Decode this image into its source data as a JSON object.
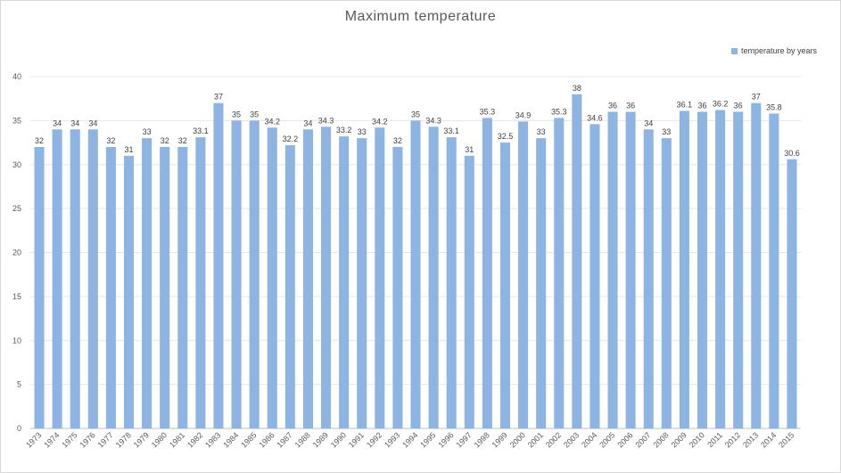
{
  "chart_data": {
    "type": "bar",
    "title": "Maximum temperature",
    "xlabel": "",
    "ylabel": "",
    "ylim": [
      0,
      40
    ],
    "yticks": [
      0,
      5,
      10,
      15,
      20,
      25,
      30,
      35,
      40
    ],
    "grid": true,
    "legend_position": "top-right",
    "categories": [
      "1973",
      "1974",
      "1975",
      "1976",
      "1977",
      "1978",
      "1979",
      "1980",
      "1981",
      "1982",
      "1983",
      "1984",
      "1985",
      "1986",
      "1987",
      "1988",
      "1989",
      "1990",
      "1991",
      "1992",
      "1993",
      "1994",
      "1995",
      "1996",
      "1997",
      "1998",
      "1999",
      "2000",
      "2001",
      "2002",
      "2003",
      "2004",
      "2005",
      "2006",
      "2007",
      "2008",
      "2009",
      "2010",
      "2011",
      "2012",
      "2013",
      "2014",
      "2015"
    ],
    "series": [
      {
        "name": "temperature by years",
        "color": "#8db4e2",
        "values": [
          32,
          34,
          34,
          34,
          32,
          31,
          33,
          32,
          32,
          33.1,
          37,
          35,
          35,
          34.2,
          32.2,
          34,
          34.3,
          33.2,
          33,
          34.2,
          32,
          35,
          34.3,
          33.1,
          31,
          35.3,
          32.5,
          34.9,
          33,
          35.3,
          38,
          34.6,
          36,
          36,
          34,
          33,
          36.1,
          36,
          36.2,
          36,
          37,
          35.8,
          30.6
        ]
      }
    ]
  }
}
